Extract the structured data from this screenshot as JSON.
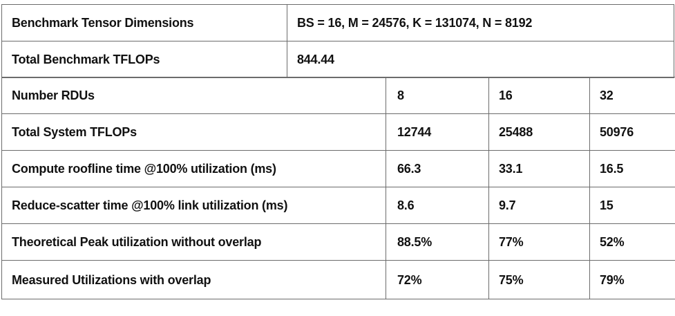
{
  "summary": {
    "dims_label": "Benchmark Tensor Dimensions",
    "dims_value": "BS = 16, M = 24576, K = 131074, N = 8192",
    "tflops_label": "Total Benchmark TFLOPs",
    "tflops_value": "844.44"
  },
  "results": {
    "header": {
      "label": "Number RDUs",
      "cols": [
        "8",
        "16",
        "32"
      ]
    },
    "rows": [
      {
        "label": "Total System TFLOPs",
        "values": [
          "12744",
          "25488",
          "50976"
        ]
      },
      {
        "label": "Compute roofline time @100% utilization (ms)",
        "values": [
          "66.3",
          "33.1",
          "16.5"
        ]
      },
      {
        "label": "Reduce-scatter time @100% link utilization (ms)",
        "values": [
          "8.6",
          "9.7",
          "15"
        ]
      },
      {
        "label": "Theoretical Peak utilization without overlap",
        "values": [
          "88.5%",
          "77%",
          "52%"
        ]
      },
      {
        "label": "Measured Utilizations with overlap",
        "values": [
          "72%",
          "75%",
          "79%"
        ]
      }
    ]
  }
}
